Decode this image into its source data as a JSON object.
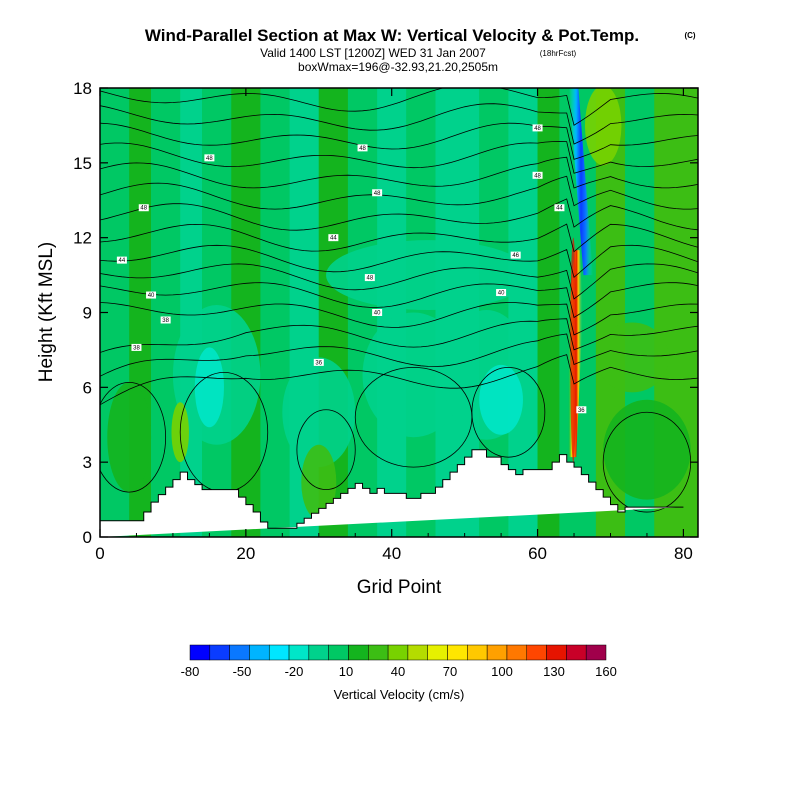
{
  "chart_data": {
    "type": "heatmap",
    "title": "Wind-Parallel Section at Max W: Vertical Velocity & Pot.Temp.",
    "title_tag": "(C)",
    "subtitle": "Valid 1400 LST [1200Z] WED 31 Jan 2007",
    "subtitle_tag": "(18hrFcst)",
    "subtitle2": "boxWmax=196@-32.93,21.20,2505m",
    "xlabel": "Grid Point",
    "ylabel": "Height (Kft MSL)",
    "xlim": [
      0,
      82
    ],
    "ylim": [
      0,
      18
    ],
    "x_ticks": [
      "0",
      "20",
      "40",
      "60",
      "80"
    ],
    "y_ticks": [
      "0",
      "3",
      "6",
      "9",
      "12",
      "15",
      "18"
    ],
    "colorbar": {
      "label": "Vertical Velocity (cm/s)",
      "tick_labels": [
        "-80",
        "-50",
        "-20",
        "10",
        "40",
        "70",
        "100",
        "130",
        "160"
      ],
      "colors": [
        "#0000ff",
        "#0a3cff",
        "#0a78ff",
        "#00b4ff",
        "#00e6ff",
        "#00e6c8",
        "#00d28c",
        "#00c864",
        "#14b41e",
        "#3cbe14",
        "#78d200",
        "#b4dc00",
        "#e6f000",
        "#ffe600",
        "#ffc800",
        "#ffa000",
        "#ff7800",
        "#ff4600",
        "#e61400",
        "#c80028",
        "#a0004b"
      ]
    },
    "terrain": {
      "x": [
        0,
        6,
        6,
        7,
        7,
        8,
        8,
        9,
        9,
        10,
        10,
        11,
        11,
        12,
        12,
        13,
        13,
        14,
        14,
        19,
        19,
        20,
        20,
        21,
        21,
        22,
        22,
        23,
        23,
        27,
        27,
        28,
        28,
        29,
        29,
        30,
        30,
        31,
        31,
        32,
        32,
        33,
        33,
        34,
        34,
        35,
        35,
        36,
        36,
        37,
        37,
        38,
        38,
        39,
        39,
        42,
        42,
        44,
        44,
        46,
        46,
        47,
        47,
        48,
        48,
        49,
        49,
        50,
        50,
        51,
        51,
        53,
        53,
        55,
        55,
        56,
        56,
        57,
        57,
        58,
        58,
        62,
        62,
        63,
        63,
        64,
        64,
        65,
        65,
        66,
        66,
        67,
        67,
        68,
        68,
        69,
        69,
        70,
        70,
        71,
        71,
        72,
        72,
        80,
        80,
        82
      ],
      "y": [
        0.65,
        0.65,
        1.0,
        1.0,
        1.4,
        1.4,
        1.7,
        1.7,
        2.0,
        2.0,
        2.3,
        2.3,
        2.6,
        2.6,
        2.3,
        2.3,
        2.1,
        2.1,
        1.9,
        1.9,
        1.6,
        1.6,
        1.3,
        1.3,
        1.0,
        1.0,
        0.6,
        0.6,
        0.35,
        0.35,
        0.55,
        0.55,
        0.75,
        0.75,
        0.95,
        0.95,
        1.15,
        1.15,
        1.35,
        1.35,
        1.55,
        1.55,
        1.75,
        1.75,
        1.95,
        1.95,
        2.15,
        2.15,
        1.95,
        1.95,
        1.75,
        1.75,
        1.95,
        1.95,
        1.75,
        1.75,
        1.55,
        1.55,
        1.75,
        1.75,
        2.0,
        2.0,
        2.3,
        2.3,
        2.6,
        2.6,
        2.9,
        2.9,
        3.2,
        3.2,
        3.5,
        3.5,
        3.2,
        3.2,
        2.9,
        2.9,
        2.7,
        2.7,
        2.5,
        2.5,
        2.7,
        2.7,
        3.0,
        3.0,
        3.3,
        3.3,
        3.0,
        3.0,
        2.8,
        2.8,
        2.5,
        2.5,
        2.2,
        2.2,
        1.9,
        1.9,
        1.6,
        1.6,
        1.3,
        1.3,
        1.0,
        1.0,
        1.2,
        1.2
      ]
    },
    "updraft": {
      "x": 65,
      "y_range": [
        3.2,
        11.5
      ],
      "peak_w": 196
    },
    "downdraft": {
      "x": 66,
      "y_range": [
        10.5,
        17
      ],
      "min_w": -60
    },
    "contour_labels": [
      {
        "text": "48",
        "x": 15,
        "y": 15.2
      },
      {
        "text": "48",
        "x": 36,
        "y": 15.6
      },
      {
        "text": "48",
        "x": 6,
        "y": 13.2
      },
      {
        "text": "48",
        "x": 38,
        "y": 13.8
      },
      {
        "text": "44",
        "x": 3,
        "y": 11.1
      },
      {
        "text": "44",
        "x": 32,
        "y": 12.0
      },
      {
        "text": "48",
        "x": 60,
        "y": 16.4
      },
      {
        "text": "48",
        "x": 60,
        "y": 14.5
      },
      {
        "text": "44",
        "x": 63,
        "y": 13.2
      },
      {
        "text": "46",
        "x": 57,
        "y": 11.3
      },
      {
        "text": "48",
        "x": 37,
        "y": 10.4
      },
      {
        "text": "40",
        "x": 7,
        "y": 9.7
      },
      {
        "text": "40",
        "x": 55,
        "y": 9.8
      },
      {
        "text": "40",
        "x": 38,
        "y": 9.0
      },
      {
        "text": "38",
        "x": 9,
        "y": 8.7
      },
      {
        "text": "38",
        "x": 5,
        "y": 7.6
      },
      {
        "text": "36",
        "x": 30,
        "y": 7.0
      },
      {
        "text": "36",
        "x": 66,
        "y": 5.1
      }
    ]
  }
}
